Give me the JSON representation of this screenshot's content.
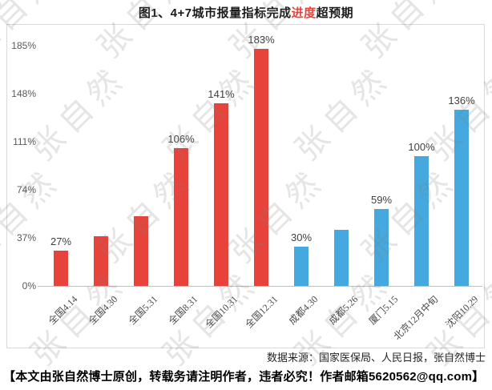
{
  "title": {
    "prefix": "图1、4+7城市报量指标完成",
    "highlight": "进度",
    "suffix": "超预期",
    "highlight_color": "#e8433b"
  },
  "chart_data": {
    "type": "bar",
    "title": "图1、4+7城市报量指标完成进度超预期",
    "categories": [
      "全国4.14",
      "全国4.30",
      "全国5.31",
      "全国8.31",
      "全国10.31",
      "全国12.31",
      "成都4.30",
      "成都5.26",
      "厦门5.15",
      "北京12月中旬",
      "沈阳10.29"
    ],
    "values": [
      27,
      38,
      54,
      106,
      141,
      183,
      30,
      43,
      59,
      100,
      136
    ],
    "data_labels": [
      "27%",
      "",
      "",
      "106%",
      "141%",
      "183%",
      "30%",
      "",
      "59%",
      "100%",
      "136%"
    ],
    "bar_colors": [
      "#e8433b",
      "#e8433b",
      "#e8433b",
      "#e8433b",
      "#e8433b",
      "#e8433b",
      "#45a9e0",
      "#45a9e0",
      "#45a9e0",
      "#45a9e0",
      "#45a9e0"
    ],
    "group_colors": {
      "national_red": "#e8433b",
      "city_blue": "#45a9e0"
    },
    "yticks": [
      0,
      37,
      74,
      111,
      148,
      185
    ],
    "ytick_labels": [
      "0%",
      "37%",
      "74%",
      "111%",
      "148%",
      "185%"
    ],
    "ylim": [
      0,
      200
    ],
    "grid": false,
    "legend": "none",
    "xlabel": "",
    "ylabel": ""
  },
  "source_note": "数据来源：国家医保局、人民日报，张自然博士",
  "footer_note": "【本文由张自然博士原创，转载务请注明作者，违者必究！作者邮箱5620562@qq.com】",
  "watermark_text": "张自然"
}
